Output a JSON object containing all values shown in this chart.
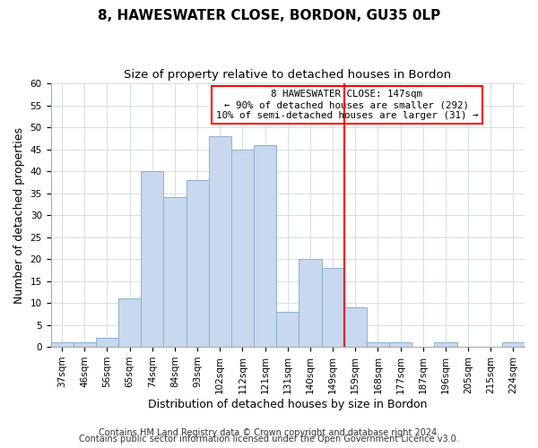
{
  "title": "8, HAWESWATER CLOSE, BORDON, GU35 0LP",
  "subtitle": "Size of property relative to detached houses in Bordon",
  "xlabel": "Distribution of detached houses by size in Bordon",
  "ylabel": "Number of detached properties",
  "bin_labels": [
    "37sqm",
    "46sqm",
    "56sqm",
    "65sqm",
    "74sqm",
    "84sqm",
    "93sqm",
    "102sqm",
    "112sqm",
    "121sqm",
    "131sqm",
    "140sqm",
    "149sqm",
    "159sqm",
    "168sqm",
    "177sqm",
    "187sqm",
    "196sqm",
    "205sqm",
    "215sqm",
    "224sqm"
  ],
  "bin_values": [
    1,
    1,
    2,
    11,
    40,
    34,
    38,
    48,
    45,
    46,
    8,
    20,
    18,
    9,
    1,
    1,
    0,
    1,
    0,
    0,
    1
  ],
  "bar_color": "#c8d8ee",
  "bar_edge_color": "#8ab0d0",
  "vline_color": "red",
  "vline_index": 12.5,
  "annotation_box_text": "8 HAWESWATER CLOSE: 147sqm\n← 90% of detached houses are smaller (292)\n10% of semi-detached houses are larger (31) →",
  "ylim": [
    0,
    60
  ],
  "yticks": [
    0,
    5,
    10,
    15,
    20,
    25,
    30,
    35,
    40,
    45,
    50,
    55,
    60
  ],
  "footer1": "Contains HM Land Registry data © Crown copyright and database right 2024.",
  "footer2": "Contains public sector information licensed under the Open Government Licence v3.0.",
  "bg_color": "#ffffff",
  "plot_bg_color": "#ffffff",
  "grid_color": "#d0d8e0",
  "title_fontsize": 11,
  "subtitle_fontsize": 9.5,
  "tick_fontsize": 7.5,
  "axis_label_fontsize": 9,
  "footer_fontsize": 7
}
